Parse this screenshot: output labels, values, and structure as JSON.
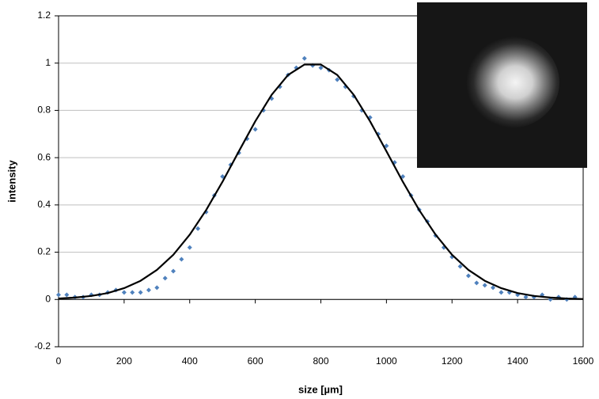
{
  "chart_data": {
    "type": "scatter",
    "x_label": "size [µm]",
    "y_label": "intensity",
    "xlim": [
      0,
      1600
    ],
    "ylim": [
      -0.2,
      1.2
    ],
    "xticks": [
      0,
      200,
      400,
      600,
      800,
      1000,
      1200,
      1400,
      1600
    ],
    "yticks": [
      -0.2,
      0,
      0.2,
      0.4,
      0.6,
      0.8,
      1,
      1.2
    ],
    "grid": true,
    "series": [
      {
        "type": "scatter",
        "color": "#4f81bd",
        "x": [
          0,
          25,
          50,
          75,
          100,
          125,
          150,
          175,
          200,
          225,
          250,
          275,
          300,
          325,
          350,
          375,
          400,
          425,
          450,
          475,
          500,
          525,
          550,
          575,
          600,
          625,
          650,
          675,
          700,
          725,
          750,
          775,
          800,
          825,
          850,
          875,
          900,
          925,
          950,
          975,
          1000,
          1025,
          1050,
          1075,
          1100,
          1125,
          1150,
          1175,
          1200,
          1225,
          1250,
          1275,
          1300,
          1325,
          1350,
          1375,
          1400,
          1425,
          1450,
          1475,
          1500,
          1525,
          1550,
          1575
        ],
        "values": [
          0.02,
          0.02,
          0.01,
          0.01,
          0.02,
          0.02,
          0.03,
          0.04,
          0.03,
          0.03,
          0.03,
          0.04,
          0.05,
          0.09,
          0.12,
          0.17,
          0.22,
          0.3,
          0.37,
          0.44,
          0.52,
          0.57,
          0.62,
          0.68,
          0.72,
          0.8,
          0.85,
          0.9,
          0.95,
          0.98,
          1.02,
          0.99,
          0.98,
          0.97,
          0.93,
          0.9,
          0.86,
          0.8,
          0.77,
          0.7,
          0.65,
          0.58,
          0.52,
          0.44,
          0.38,
          0.33,
          0.27,
          0.22,
          0.18,
          0.14,
          0.1,
          0.07,
          0.06,
          0.05,
          0.03,
          0.03,
          0.02,
          0.01,
          0.01,
          0.02,
          0.0,
          0.01,
          0.0,
          0.01
        ]
      },
      {
        "type": "line",
        "color": "#000000",
        "x": [
          0,
          50,
          100,
          150,
          200,
          250,
          300,
          350,
          400,
          450,
          500,
          550,
          600,
          650,
          700,
          750,
          800,
          850,
          900,
          950,
          1000,
          1050,
          1100,
          1150,
          1200,
          1250,
          1300,
          1350,
          1400,
          1450,
          1500,
          1550,
          1600
        ],
        "values": [
          0.004,
          0.008,
          0.015,
          0.027,
          0.048,
          0.079,
          0.125,
          0.189,
          0.274,
          0.378,
          0.498,
          0.627,
          0.754,
          0.866,
          0.95,
          0.994,
          0.994,
          0.95,
          0.866,
          0.754,
          0.627,
          0.498,
          0.378,
          0.274,
          0.189,
          0.125,
          0.079,
          0.048,
          0.027,
          0.015,
          0.008,
          0.004,
          0.002
        ]
      }
    ]
  }
}
